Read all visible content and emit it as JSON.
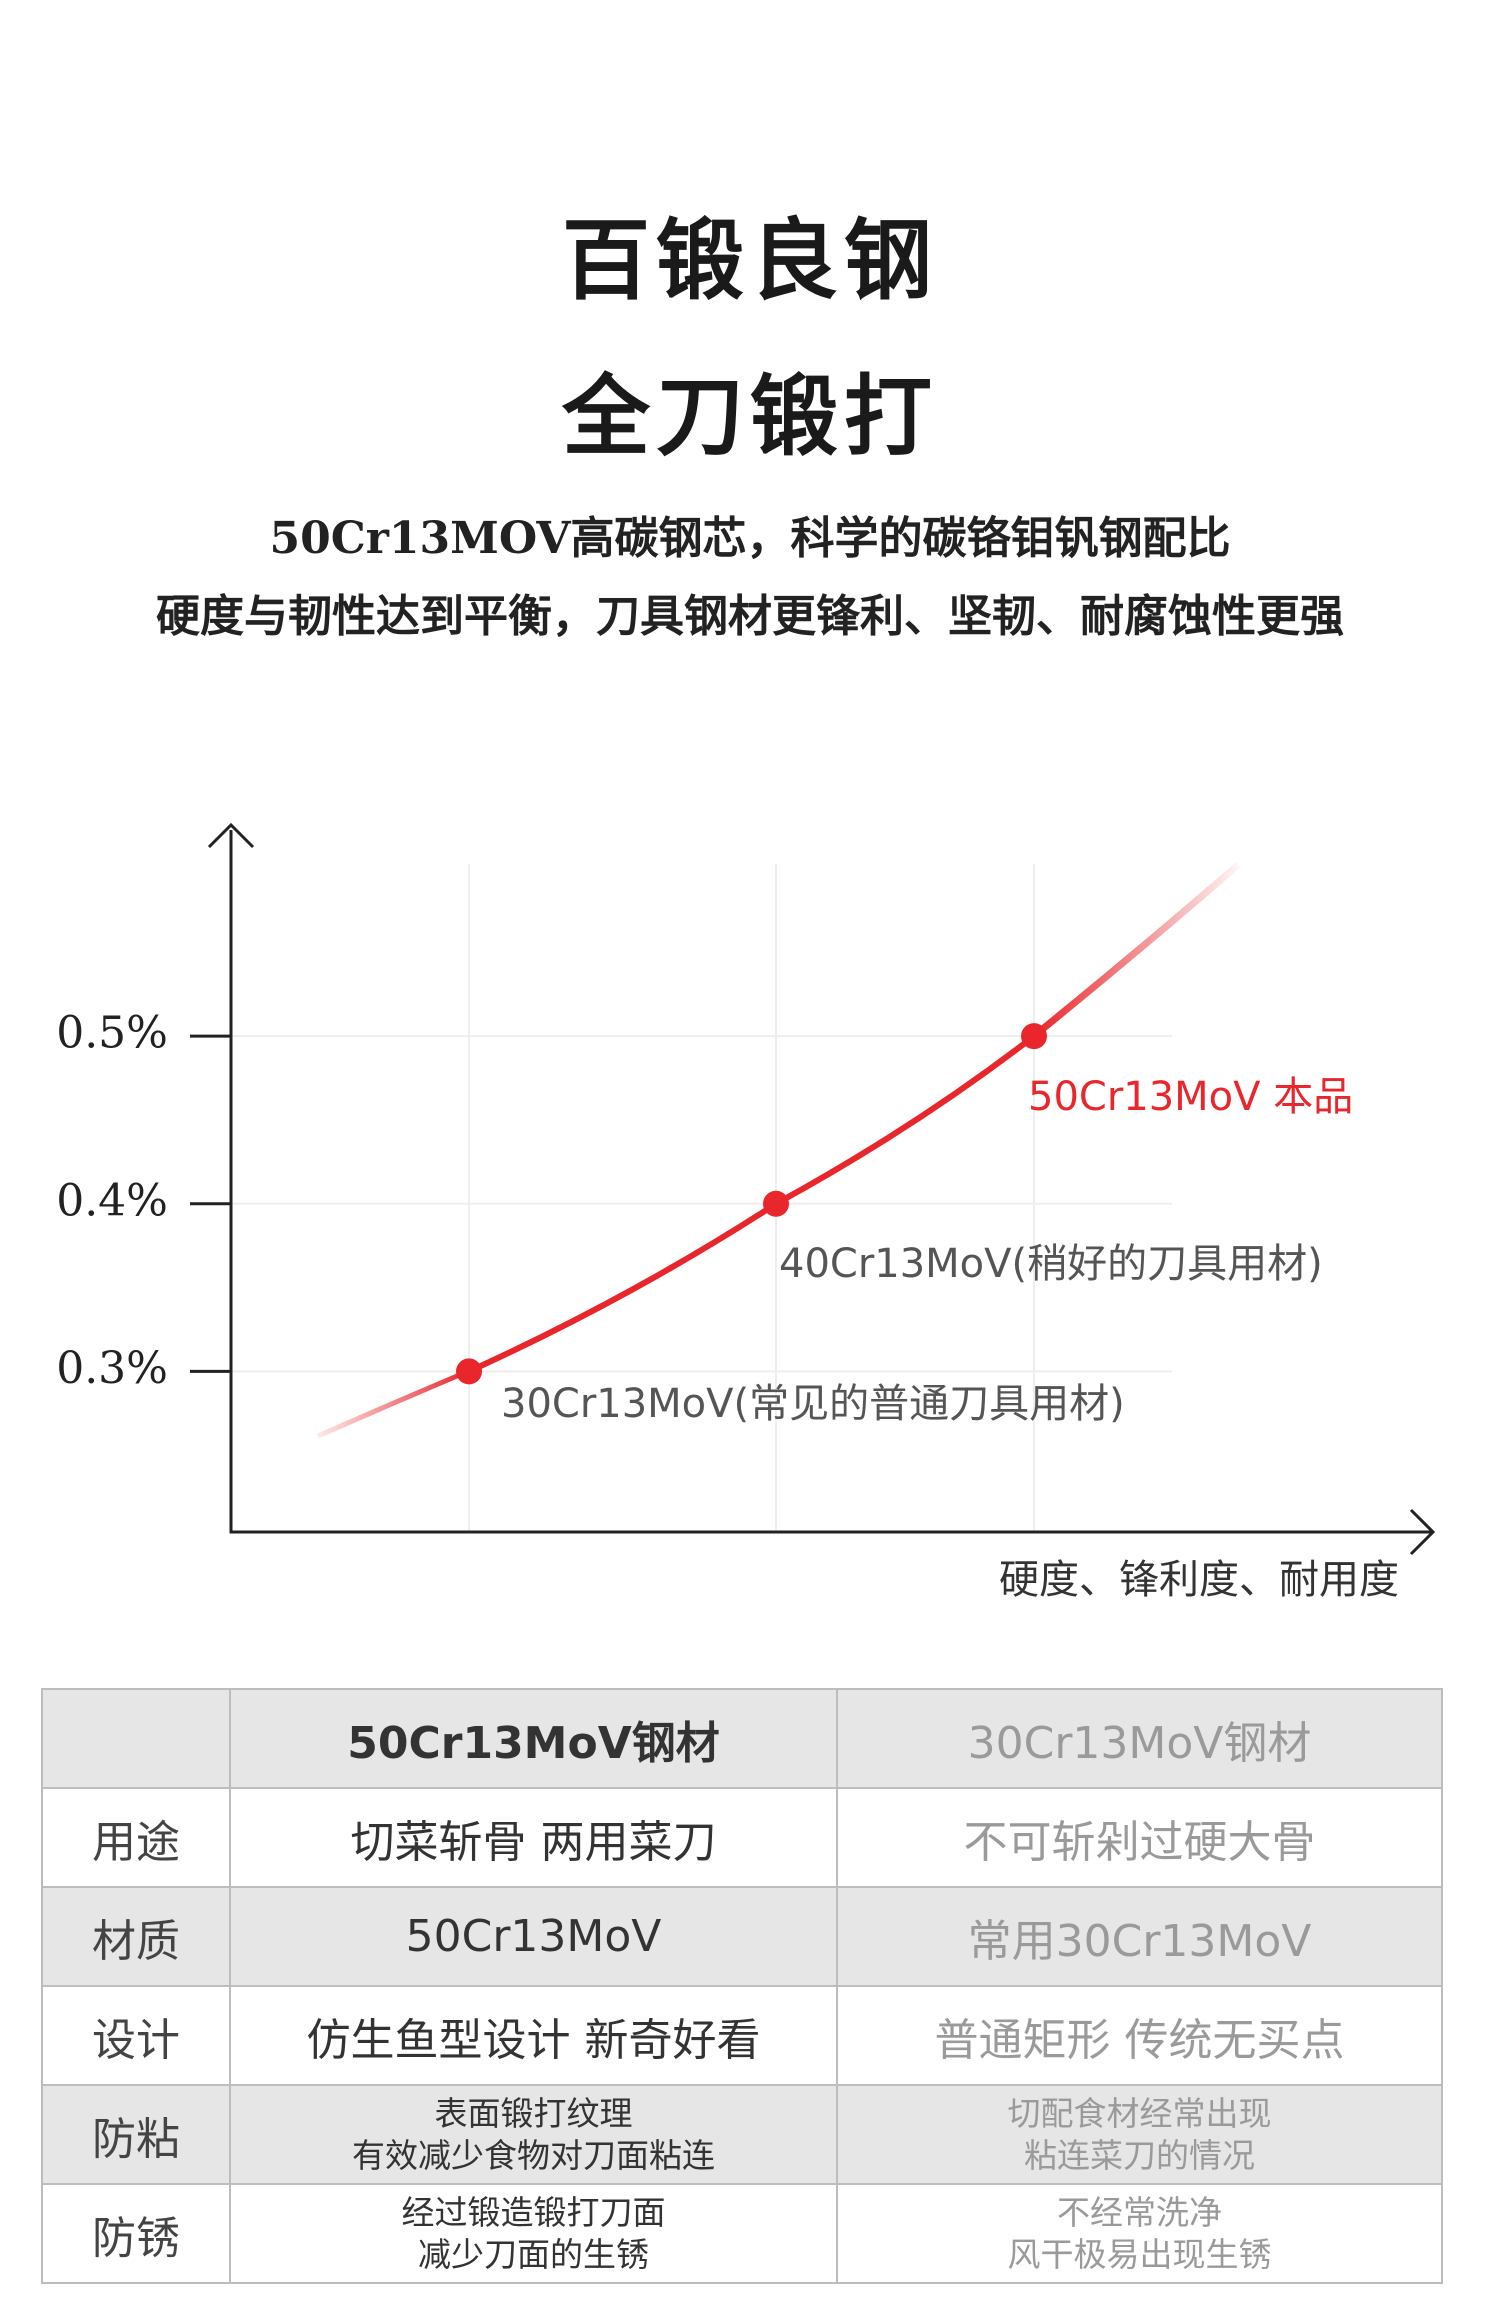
{
  "header": {
    "title_lines": [
      "百锻良钢",
      "全刀锻打"
    ],
    "subtitle_lines": [
      "50Cr13MOV高碳钢芯，科学的碳铬钼钒钢配比",
      "硬度与韧性达到平衡，刀具钢材更锋利、坚韧、耐腐蚀性更强"
    ]
  },
  "chart_data": {
    "type": "line",
    "x_label": "硬度、锋利度、耐用度",
    "categories": [
      "30Cr13MoV(常见的普通刀具用材)",
      "40Cr13MoV(稍好的刀具用材)",
      "50Cr13MoV 本品"
    ],
    "values": [
      0.3,
      0.4,
      0.5
    ],
    "color": "#e8262b",
    "label_colors": [
      "#555555",
      "#555555",
      "#e8262b"
    ],
    "ylim": [
      0.2,
      0.62
    ],
    "yticks": [
      {
        "value": 0.3,
        "label": "0.3%"
      },
      {
        "value": 0.4,
        "label": "0.4%"
      },
      {
        "value": 0.5,
        "label": "0.5%"
      }
    ],
    "grid": true
  },
  "table": {
    "header": [
      "50Cr13MoV钢材",
      "30Cr13MoV钢材"
    ],
    "rows": [
      [
        "用途",
        "切菜斩骨 两用菜刀",
        "不可斩剁过硬大骨"
      ],
      [
        "材质",
        "50Cr13MoV",
        "常用30Cr13MoV"
      ],
      [
        "设计",
        "仿生鱼型设计 新奇好看",
        "普通矩形 传统无买点"
      ],
      [
        "防粘",
        [
          "表面锻打纹理",
          "有效减少食物对刀面粘连"
        ],
        [
          "切配食材经常出现",
          "粘连菜刀的情况"
        ]
      ],
      [
        "防锈",
        [
          "经过锻造锻打刀面",
          "减少刀面的生锈"
        ],
        [
          "不经常洗净",
          "风干极易出现生锈"
        ]
      ]
    ]
  }
}
